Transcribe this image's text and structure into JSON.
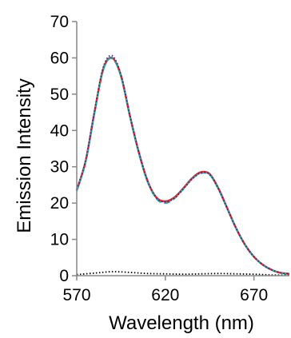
{
  "chart_data": {
    "type": "line",
    "title": "",
    "xlabel": "Wavelength (nm)",
    "ylabel": "Emission Intensity",
    "xlim": [
      570,
      690
    ],
    "ylim": [
      0,
      70
    ],
    "xticks": [
      570,
      620,
      670
    ],
    "yticks": [
      0,
      10,
      20,
      30,
      40,
      50,
      60,
      70
    ],
    "grid": false,
    "legend": "none",
    "series": [
      {
        "color": "#e8262a",
        "style": "solid",
        "x": [
          570,
          575,
          580,
          585,
          590,
          595,
          600,
          605,
          610,
          615,
          620,
          625,
          630,
          635,
          640,
          645,
          650,
          655,
          660,
          665,
          670,
          675,
          680,
          685,
          690
        ],
        "y": [
          23.5,
          31.5,
          45,
          57,
          60,
          55,
          44,
          34,
          26,
          21.5,
          20.5,
          21.5,
          24,
          26.8,
          28.5,
          28,
          24,
          18.5,
          13,
          8.5,
          5.2,
          3,
          1.6,
          0.8,
          0.5
        ]
      },
      {
        "color": "#2b2b8c",
        "style": "dotted",
        "x": [
          570,
          575,
          580,
          585,
          590,
          595,
          600,
          605,
          610,
          615,
          620,
          625,
          630,
          635,
          640,
          645,
          650,
          655,
          660,
          665,
          670,
          675,
          680,
          685,
          690
        ],
        "y": [
          23.8,
          31.8,
          45.4,
          57.5,
          60.6,
          55.3,
          44.2,
          34.1,
          26.1,
          21.4,
          20.3,
          21.3,
          23.8,
          26.6,
          28.3,
          27.9,
          23.9,
          18.4,
          13,
          8.5,
          5.2,
          3,
          1.6,
          0.8,
          0.5
        ]
      },
      {
        "color": "#2aa7a0",
        "style": "dashed",
        "x": [
          570,
          575,
          580,
          585,
          590,
          595,
          600,
          605,
          610,
          615,
          620,
          625,
          630,
          635,
          640,
          645,
          650,
          655,
          660,
          665,
          670,
          675,
          680,
          685,
          690
        ],
        "y": [
          23.3,
          31.3,
          44.8,
          56.8,
          59.8,
          54.8,
          43.8,
          33.8,
          25.8,
          21.2,
          20,
          21.2,
          23.8,
          26.6,
          28.2,
          27.8,
          23.8,
          18.4,
          13,
          8.5,
          5.2,
          3,
          1.6,
          0.8,
          0.5
        ]
      },
      {
        "color": "#000000",
        "style": "dotted",
        "x": [
          570,
          580,
          590,
          600,
          610,
          620,
          630,
          640,
          650,
          660,
          670,
          680,
          690
        ],
        "y": [
          0.3,
          0.7,
          1.1,
          0.9,
          0.6,
          0.5,
          0.4,
          0.5,
          0.6,
          0.5,
          0.4,
          0.2,
          0.1
        ]
      }
    ]
  }
}
